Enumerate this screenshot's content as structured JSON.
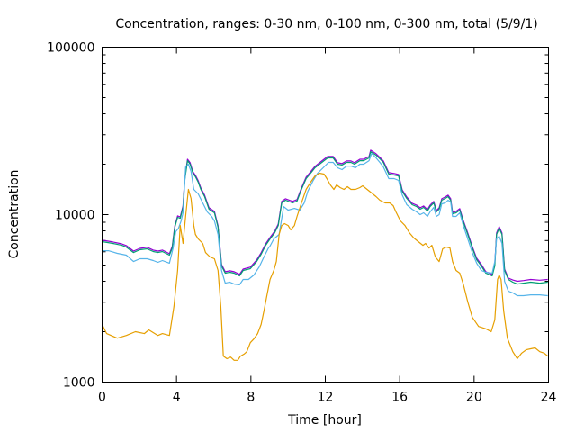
{
  "chart_data": {
    "type": "line",
    "title": "Concentration, ranges: 0-30 nm, 0-100 nm, 0-300 nm, total (5/9/1)",
    "xlabel": "Time [hour]",
    "ylabel": "Concentration",
    "xlim": [
      0,
      24
    ],
    "ylim": [
      1000,
      100000
    ],
    "yscale": "log",
    "xticks": [
      0,
      4,
      8,
      12,
      16,
      20,
      24
    ],
    "xtick_labels": [
      "0",
      "4",
      "8",
      "12",
      "16",
      "20",
      "24"
    ],
    "yticks": [
      1000,
      10000,
      100000
    ],
    "ytick_labels": [
      "1000",
      "10000",
      "100000"
    ],
    "grid": false,
    "legend": "none",
    "series": [
      {
        "name": "total",
        "color": "#9400d3",
        "x": [
          0,
          0.58,
          1.06,
          1.3,
          1.69,
          2.03,
          2.42,
          2.75,
          3.0,
          3.24,
          3.62,
          3.77,
          3.91,
          4.06,
          4.2,
          4.35,
          4.44,
          4.59,
          4.73,
          4.88,
          5.02,
          5.17,
          5.31,
          5.51,
          5.75,
          6.04,
          6.23,
          6.42,
          6.62,
          6.86,
          7.1,
          7.39,
          7.58,
          7.97,
          8.31,
          8.55,
          8.79,
          9.03,
          9.28,
          9.47,
          9.66,
          9.86,
          10.24,
          10.48,
          10.72,
          10.97,
          11.21,
          11.45,
          11.69,
          11.93,
          12.13,
          12.42,
          12.66,
          12.9,
          13.14,
          13.38,
          13.57,
          13.86,
          14.06,
          14.35,
          14.44,
          14.73,
          14.93,
          15.12,
          15.41,
          15.7,
          15.94,
          16.13,
          16.38,
          16.67,
          16.91,
          17.1,
          17.29,
          17.49,
          17.63,
          17.83,
          17.97,
          18.12,
          18.26,
          18.45,
          18.6,
          18.74,
          18.84,
          19.03,
          19.23,
          19.42,
          19.66,
          19.9,
          20.14,
          20.39,
          20.63,
          20.97,
          21.11,
          21.21,
          21.35,
          21.5,
          21.64,
          21.84,
          22.08,
          22.32,
          22.66,
          23.04,
          23.53,
          23.96
        ],
        "y": [
          7040,
          6860,
          6690,
          6530,
          6060,
          6290,
          6380,
          6140,
          6060,
          6140,
          5840,
          6450,
          8580,
          9830,
          9700,
          11260,
          16320,
          21420,
          20400,
          18020,
          17170,
          15930,
          14430,
          13070,
          10990,
          10460,
          8580,
          5040,
          4560,
          4620,
          4560,
          4400,
          4730,
          4860,
          5360,
          5920,
          6690,
          7300,
          7960,
          8780,
          11990,
          12430,
          11990,
          12290,
          14430,
          16740,
          18020,
          19430,
          20400,
          21420,
          22240,
          22240,
          20400,
          20170,
          20910,
          20910,
          20400,
          21420,
          21420,
          22240,
          24250,
          23080,
          21980,
          20910,
          17800,
          17600,
          17370,
          14080,
          12750,
          11690,
          11390,
          10990,
          11260,
          10720,
          11390,
          11990,
          10590,
          10990,
          12430,
          12750,
          13070,
          12430,
          10320,
          10460,
          10850,
          9240,
          7770,
          6450,
          5490,
          5040,
          4560,
          4400,
          5040,
          7770,
          8470,
          7770,
          4730,
          4180,
          4070,
          4000,
          4040,
          4100,
          4060,
          4100
        ]
      },
      {
        "name": "0-300 nm",
        "color": "#009e73",
        "x": [
          0,
          0.58,
          1.06,
          1.3,
          1.69,
          2.03,
          2.42,
          2.75,
          3.0,
          3.24,
          3.62,
          3.77,
          3.91,
          4.06,
          4.2,
          4.35,
          4.44,
          4.59,
          4.73,
          4.88,
          5.02,
          5.17,
          5.31,
          5.51,
          5.75,
          6.04,
          6.23,
          6.42,
          6.62,
          6.86,
          7.1,
          7.39,
          7.58,
          7.97,
          8.31,
          8.55,
          8.79,
          9.03,
          9.28,
          9.47,
          9.66,
          9.86,
          10.24,
          10.48,
          10.72,
          10.97,
          11.21,
          11.45,
          11.69,
          11.93,
          12.13,
          12.42,
          12.66,
          12.9,
          13.14,
          13.38,
          13.57,
          13.86,
          14.06,
          14.35,
          14.44,
          14.73,
          14.93,
          15.12,
          15.41,
          15.7,
          15.94,
          16.13,
          16.38,
          16.67,
          16.91,
          17.1,
          17.29,
          17.49,
          17.63,
          17.83,
          17.97,
          18.12,
          18.26,
          18.45,
          18.6,
          18.74,
          18.84,
          19.03,
          19.23,
          19.42,
          19.66,
          19.9,
          20.14,
          20.39,
          20.63,
          20.97,
          21.11,
          21.21,
          21.35,
          21.5,
          21.64,
          21.84,
          22.08,
          22.32,
          22.66,
          23.04,
          23.53,
          23.96
        ],
        "y": [
          6900,
          6730,
          6560,
          6400,
          5940,
          6170,
          6250,
          6020,
          5940,
          6020,
          5730,
          6320,
          8410,
          9640,
          9510,
          11040,
          16000,
          21000,
          20000,
          17670,
          16830,
          15620,
          14150,
          12810,
          10770,
          10250,
          8410,
          4940,
          4470,
          4530,
          4470,
          4310,
          4640,
          4760,
          5250,
          5800,
          6560,
          7160,
          7800,
          8610,
          11750,
          12190,
          11750,
          12050,
          14150,
          16410,
          17670,
          19050,
          20000,
          21000,
          21800,
          21800,
          20000,
          19770,
          20500,
          20500,
          20000,
          21000,
          21000,
          21800,
          23770,
          22630,
          21550,
          20500,
          17450,
          17250,
          17030,
          13800,
          12500,
          11460,
          11170,
          10770,
          11040,
          10510,
          11170,
          11750,
          10380,
          10770,
          12190,
          12500,
          12810,
          12190,
          10120,
          10250,
          10640,
          9060,
          7620,
          6320,
          5380,
          4940,
          4470,
          4310,
          4940,
          7620,
          8300,
          7620,
          4640,
          4100,
          3950,
          3850,
          3900,
          3950,
          3900,
          3950
        ]
      },
      {
        "name": "0-100 nm",
        "color": "#56b4e9",
        "x": [
          0,
          0.34,
          0.82,
          1.3,
          1.69,
          2.03,
          2.42,
          2.75,
          3.0,
          3.24,
          3.62,
          3.82,
          3.96,
          4.11,
          4.25,
          4.35,
          4.49,
          4.64,
          4.78,
          4.93,
          5.17,
          5.41,
          5.65,
          5.89,
          6.04,
          6.23,
          6.42,
          6.62,
          6.86,
          7.1,
          7.39,
          7.58,
          7.87,
          8.16,
          8.45,
          8.7,
          8.94,
          9.03,
          9.23,
          9.52,
          9.76,
          10.0,
          10.34,
          10.63,
          10.87,
          11.06,
          11.35,
          11.59,
          11.93,
          12.17,
          12.42,
          12.66,
          12.9,
          13.14,
          13.38,
          13.62,
          13.86,
          14.06,
          14.35,
          14.49,
          14.73,
          14.93,
          15.12,
          15.41,
          15.7,
          15.94,
          16.13,
          16.38,
          16.67,
          16.91,
          17.1,
          17.29,
          17.49,
          17.63,
          17.83,
          17.97,
          18.12,
          18.26,
          18.45,
          18.6,
          18.74,
          18.84,
          19.03,
          19.23,
          19.42,
          19.66,
          19.9,
          20.14,
          20.39,
          20.63,
          20.97,
          21.11,
          21.21,
          21.35,
          21.5,
          21.64,
          21.84,
          22.08,
          22.32,
          22.66,
          23.04,
          23.53,
          23.96
        ],
        "y": [
          6090,
          6090,
          5870,
          5730,
          5250,
          5450,
          5450,
          5320,
          5190,
          5320,
          5130,
          6320,
          7900,
          8300,
          9170,
          10250,
          19280,
          20000,
          18110,
          14150,
          13300,
          11750,
          10380,
          9750,
          9170,
          7620,
          4640,
          3900,
          3950,
          3850,
          3810,
          4100,
          4100,
          4360,
          4880,
          5590,
          6320,
          6490,
          7160,
          7620,
          11170,
          10640,
          10890,
          10640,
          11750,
          13800,
          16000,
          17670,
          19280,
          20500,
          20500,
          19050,
          18580,
          19500,
          19500,
          19050,
          20000,
          20000,
          21000,
          23200,
          21800,
          20500,
          19280,
          16410,
          16410,
          16000,
          13130,
          11460,
          10770,
          10380,
          10000,
          10250,
          9750,
          10380,
          11040,
          9750,
          10000,
          11600,
          11750,
          12190,
          11890,
          9750,
          9750,
          10250,
          8610,
          7160,
          5940,
          5130,
          4640,
          4530,
          4470,
          5250,
          7160,
          7430,
          6730,
          4000,
          3490,
          3410,
          3280,
          3280,
          3320,
          3320,
          3280
        ]
      },
      {
        "name": "0-30 nm",
        "color": "#e69f00",
        "x": [
          0,
          0.24,
          0.82,
          1.3,
          1.79,
          2.27,
          2.51,
          3.0,
          3.24,
          3.62,
          3.86,
          4.06,
          4.2,
          4.35,
          4.49,
          4.64,
          4.78,
          4.93,
          5.02,
          5.17,
          5.41,
          5.56,
          5.8,
          6.04,
          6.23,
          6.38,
          6.52,
          6.71,
          6.91,
          7.1,
          7.29,
          7.44,
          7.63,
          7.78,
          7.97,
          8.16,
          8.36,
          8.55,
          8.7,
          8.84,
          9.03,
          9.23,
          9.37,
          9.52,
          9.66,
          9.81,
          10.0,
          10.14,
          10.34,
          10.48,
          10.72,
          10.97,
          11.21,
          11.45,
          11.69,
          11.93,
          12.08,
          12.27,
          12.46,
          12.61,
          12.8,
          13.0,
          13.19,
          13.38,
          13.62,
          13.86,
          14.01,
          14.25,
          14.49,
          14.73,
          14.93,
          15.22,
          15.46,
          15.65,
          15.8,
          16.04,
          16.28,
          16.52,
          16.76,
          17.0,
          17.25,
          17.39,
          17.58,
          17.73,
          17.92,
          18.12,
          18.31,
          18.5,
          18.7,
          18.84,
          19.03,
          19.23,
          19.42,
          19.66,
          19.9,
          20.24,
          20.63,
          20.92,
          21.11,
          21.26,
          21.35,
          21.45,
          21.59,
          21.79,
          22.08,
          22.32,
          22.56,
          22.8,
          23.04,
          23.28,
          23.53,
          23.77,
          23.96
        ],
        "y": [
          2210,
          1950,
          1830,
          1900,
          2000,
          1950,
          2050,
          1900,
          1950,
          1900,
          2830,
          4640,
          8610,
          6730,
          9750,
          14150,
          12500,
          8610,
          7620,
          7160,
          6730,
          5940,
          5590,
          5450,
          4640,
          2830,
          1430,
          1380,
          1410,
          1350,
          1350,
          1430,
          1470,
          1520,
          1720,
          1810,
          1950,
          2210,
          2660,
          3200,
          4100,
          4640,
          5250,
          7620,
          8610,
          8840,
          8610,
          8100,
          8610,
          9750,
          11750,
          14150,
          15620,
          17030,
          17670,
          17450,
          16410,
          15040,
          14150,
          15040,
          14490,
          14150,
          14680,
          14150,
          14150,
          14490,
          14860,
          14150,
          13460,
          12810,
          12190,
          11750,
          11750,
          11320,
          10380,
          9170,
          8610,
          7800,
          7250,
          6900,
          6560,
          6730,
          6320,
          6560,
          5590,
          5250,
          6250,
          6400,
          6320,
          5250,
          4640,
          4470,
          3850,
          3010,
          2440,
          2150,
          2080,
          2000,
          2350,
          4100,
          4360,
          4100,
          2660,
          1830,
          1520,
          1380,
          1490,
          1560,
          1580,
          1600,
          1520,
          1490,
          1430
        ]
      }
    ]
  }
}
